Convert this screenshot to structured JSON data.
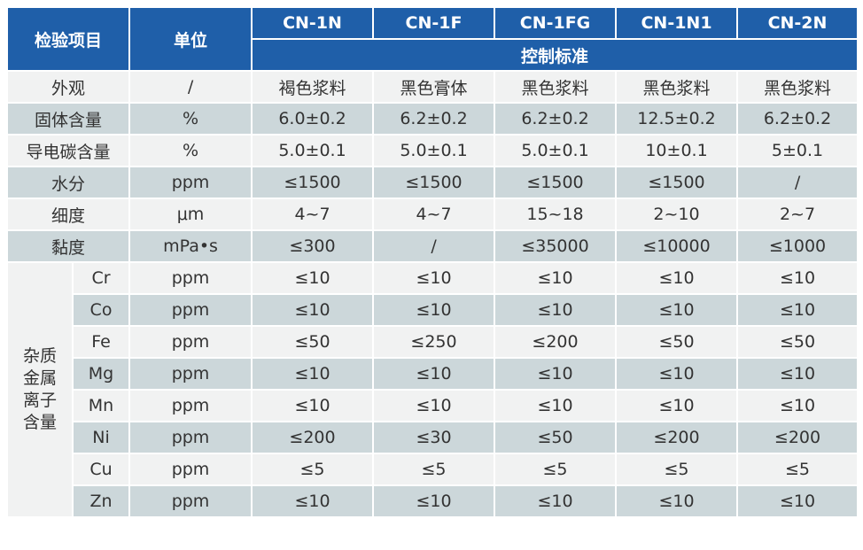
{
  "header": {
    "item": "检验项目",
    "unit": "单位",
    "products": [
      "CN-1N",
      "CN-1F",
      "CN-1FG",
      "CN-1N1",
      "CN-2N"
    ],
    "standard": "控制标准"
  },
  "rows": [
    {
      "item": "外观",
      "unit": "/",
      "values": [
        "褐色浆料",
        "黑色膏体",
        "黑色浆料",
        "黑色浆料",
        "黑色浆料"
      ]
    },
    {
      "item": "固体含量",
      "unit": "%",
      "values": [
        "6.0±0.2",
        "6.2±0.2",
        "6.2±0.2",
        "12.5±0.2",
        "6.2±0.2"
      ]
    },
    {
      "item": "导电碳含量",
      "unit": "%",
      "values": [
        "5.0±0.1",
        "5.0±0.1",
        "5.0±0.1",
        "10±0.1",
        "5±0.1"
      ]
    },
    {
      "item": "水分",
      "unit": "ppm",
      "values": [
        "≤1500",
        "≤1500",
        "≤1500",
        "≤1500",
        "/"
      ]
    },
    {
      "item": "细度",
      "unit": "μm",
      "values": [
        "4~7",
        "4~7",
        "15~18",
        "2~10",
        "2~7"
      ]
    },
    {
      "item": "黏度",
      "unit": "mPa•s",
      "values": [
        "≤300",
        "/",
        "≤35000",
        "≤10000",
        "≤1000"
      ]
    }
  ],
  "impurity": {
    "label_lines": [
      "杂质",
      "金属",
      "离子",
      "含量"
    ],
    "rows": [
      {
        "item": "Cr",
        "unit": "ppm",
        "values": [
          "≤10",
          "≤10",
          "≤10",
          "≤10",
          "≤10"
        ]
      },
      {
        "item": "Co",
        "unit": "ppm",
        "values": [
          "≤10",
          "≤10",
          "≤10",
          "≤10",
          "≤10"
        ]
      },
      {
        "item": "Fe",
        "unit": "ppm",
        "values": [
          "≤50",
          "≤250",
          "≤200",
          "≤50",
          "≤50"
        ]
      },
      {
        "item": "Mg",
        "unit": "ppm",
        "values": [
          "≤10",
          "≤10",
          "≤10",
          "≤10",
          "≤10"
        ]
      },
      {
        "item": "Mn",
        "unit": "ppm",
        "values": [
          "≤10",
          "≤10",
          "≤10",
          "≤10",
          "≤10"
        ]
      },
      {
        "item": "Ni",
        "unit": "ppm",
        "values": [
          "≤200",
          "≤30",
          "≤50",
          "≤200",
          "≤200"
        ]
      },
      {
        "item": "Cu",
        "unit": "ppm",
        "values": [
          "≤5",
          "≤5",
          "≤5",
          "≤5",
          "≤5"
        ]
      },
      {
        "item": "Zn",
        "unit": "ppm",
        "values": [
          "≤10",
          "≤10",
          "≤10",
          "≤10",
          "≤10"
        ]
      }
    ]
  }
}
